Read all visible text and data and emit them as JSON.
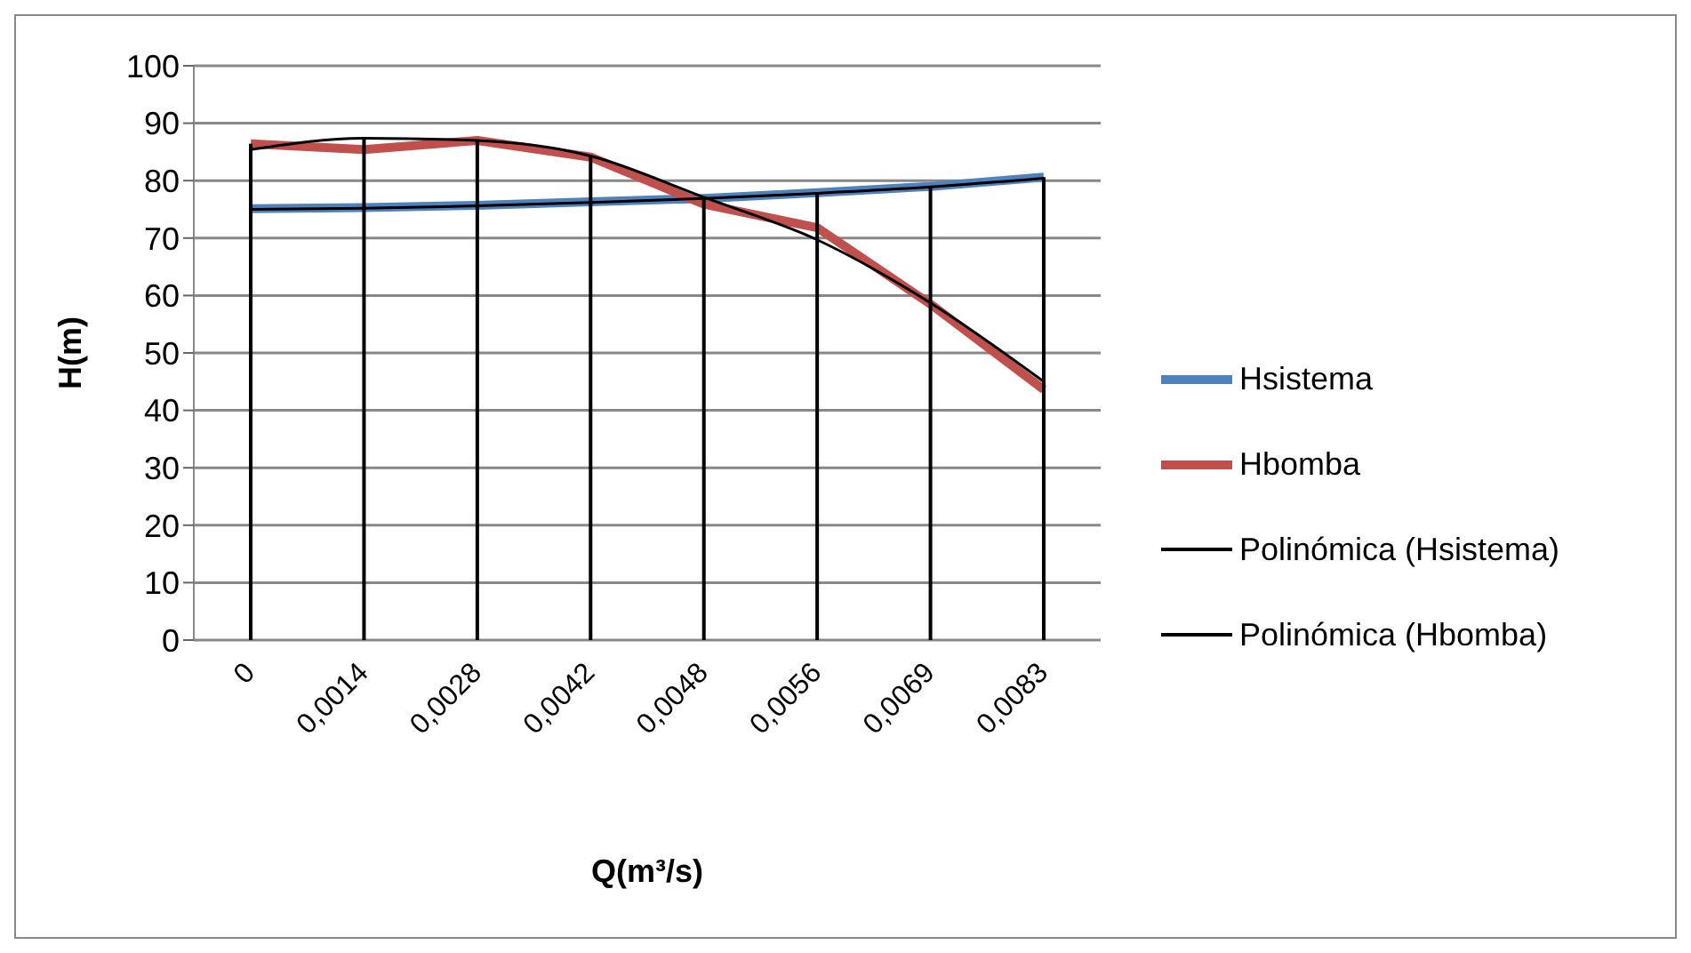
{
  "chart_data": {
    "type": "line",
    "xlabel": "Q(m³/s)",
    "ylabel": "H(m)",
    "categories": [
      "0",
      "0,0014",
      "0,0028",
      "0,0042",
      "0,0048",
      "0,0056",
      "0,0069",
      "0,0083"
    ],
    "series": [
      {
        "name": "Hsistema",
        "color": "#4f81bd",
        "values": [
          75.1,
          75.3,
          75.7,
          76.3,
          76.9,
          77.9,
          79,
          80.6
        ]
      },
      {
        "name": "Hbomba",
        "color": "#c0504d",
        "values": [
          86.4,
          85.4,
          87,
          84.1,
          75.9,
          71.8,
          58.5,
          43.6
        ]
      },
      {
        "name": "Polinómica (Hsistema)",
        "color": "#000000",
        "values": [
          75,
          75.2,
          75.6,
          76.2,
          76.9,
          77.8,
          78.9,
          80.4
        ]
      },
      {
        "name": "Polinómica (Hbomba)",
        "color": "#000000",
        "values": [
          85.4,
          87.4,
          87,
          84.3,
          77.1,
          69.7,
          58.7,
          45
        ]
      }
    ],
    "ylim": [
      0,
      100
    ],
    "yticks": [
      0,
      10,
      20,
      30,
      40,
      50,
      60,
      70,
      80,
      90,
      100
    ],
    "grid": true,
    "legend": "right",
    "marker": "none",
    "line_style": "solid"
  }
}
